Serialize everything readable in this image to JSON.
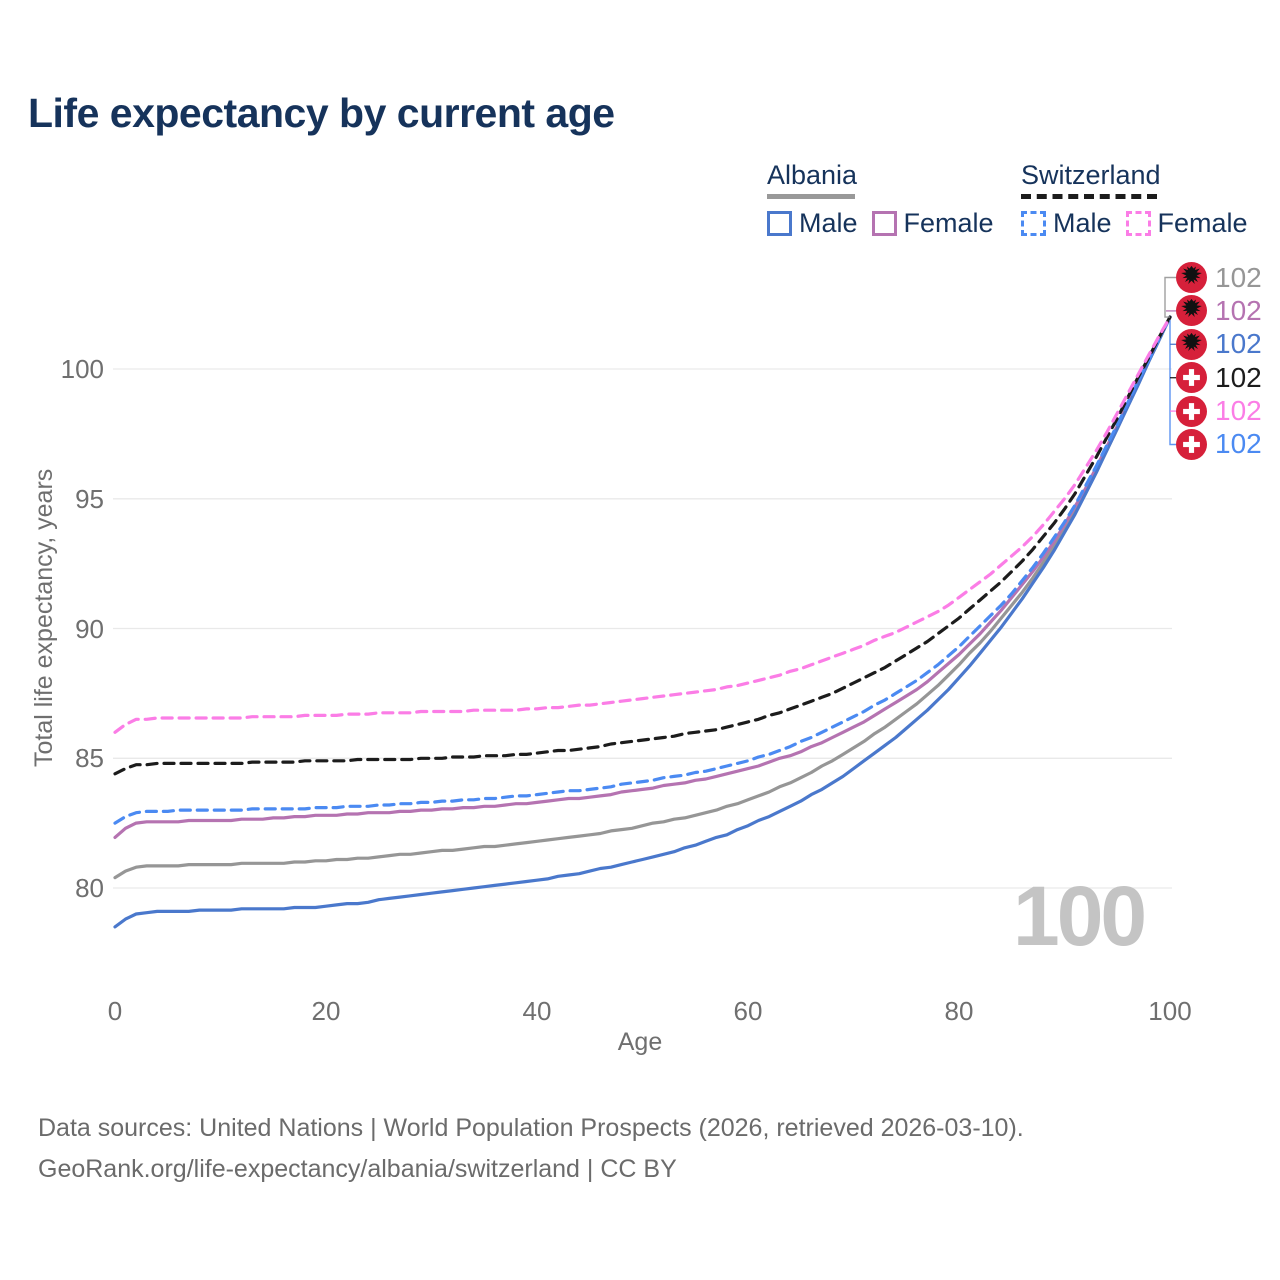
{
  "title": "Life expectancy by current age",
  "watermark": "100",
  "legend": {
    "groups": [
      {
        "country": "Albania",
        "line_style": "solid",
        "underline_color": "#999999",
        "items": [
          {
            "label": "Male",
            "color": "#4a78cc"
          },
          {
            "label": "Female",
            "color": "#b573b1"
          }
        ]
      },
      {
        "country": "Switzerland",
        "line_style": "dashed",
        "underline_color": "#1c1c1c",
        "items": [
          {
            "label": "Male",
            "color": "#4b8af2"
          },
          {
            "label": "Female",
            "color": "#fb7de6"
          }
        ]
      }
    ]
  },
  "chart_data": {
    "type": "line",
    "title": "Life expectancy by current age",
    "xlabel": "Age",
    "ylabel": "Total life expectancy, years",
    "x_ticks": [
      0,
      20,
      40,
      60,
      80,
      100
    ],
    "y_ticks": [
      100,
      95,
      90,
      85,
      80
    ],
    "xlim": [
      0,
      100
    ],
    "ylim": [
      78,
      102.5
    ],
    "grid": "horizontal",
    "legend_position": "top-right",
    "x": [
      0,
      2,
      10,
      20,
      30,
      40,
      50,
      60,
      70,
      80,
      90,
      100
    ],
    "series": [
      {
        "name": "Albania — Both sexes",
        "country": "Albania",
        "sex": "both",
        "color": "#969696",
        "dash": false,
        "values": [
          80.4,
          80.8,
          80.9,
          81.05,
          81.4,
          81.8,
          82.4,
          83.4,
          85.4,
          88.6,
          93.8,
          102
        ]
      },
      {
        "name": "Albania — Female",
        "country": "Albania",
        "sex": "female",
        "color": "#b573b1",
        "dash": false,
        "values": [
          81.95,
          82.5,
          82.6,
          82.8,
          83.0,
          83.3,
          83.8,
          84.6,
          86.2,
          89.0,
          94.0,
          102
        ]
      },
      {
        "name": "Albania — Male",
        "country": "Albania",
        "sex": "male",
        "color": "#4a78cc",
        "dash": false,
        "values": [
          78.5,
          79.0,
          79.15,
          79.3,
          79.8,
          80.3,
          81.1,
          82.4,
          84.6,
          88.1,
          93.7,
          102
        ]
      },
      {
        "name": "Switzerland — Male",
        "country": "Switzerland",
        "sex": "male",
        "color": "#4b8af2",
        "dash": true,
        "values": [
          82.5,
          82.9,
          83.0,
          83.1,
          83.3,
          83.6,
          84.1,
          84.9,
          86.6,
          89.3,
          94.1,
          102
        ]
      },
      {
        "name": "Switzerland — Both sexes",
        "country": "Switzerland",
        "sex": "both",
        "color": "#1c1c1c",
        "dash": true,
        "values": [
          84.4,
          84.75,
          84.8,
          84.9,
          85.0,
          85.2,
          85.7,
          86.4,
          87.9,
          90.4,
          94.6,
          102
        ]
      },
      {
        "name": "Switzerland — Female",
        "country": "Switzerland",
        "sex": "female",
        "color": "#fb7de6",
        "dash": true,
        "values": [
          86.0,
          86.5,
          86.55,
          86.65,
          86.8,
          86.9,
          87.3,
          87.9,
          89.2,
          91.2,
          95.0,
          102
        ]
      }
    ]
  },
  "end_labels": {
    "rows": [
      {
        "flag": "albania",
        "value": "102",
        "color": "#969696"
      },
      {
        "flag": "albania",
        "value": "102",
        "color": "#b573b1"
      },
      {
        "flag": "albania",
        "value": "102",
        "color": "#4a78cc"
      },
      {
        "flag": "switzerland",
        "value": "102",
        "color": "#1c1c1c"
      },
      {
        "flag": "switzerland",
        "value": "102",
        "color": "#fb7de6"
      },
      {
        "flag": "switzerland",
        "value": "102",
        "color": "#4b8af2"
      }
    ]
  },
  "footer": {
    "line1": "Data sources: United Nations | World Population Prospects (2026, retrieved 2026-03-10).",
    "line2": "GeoRank.org/life-expectancy/albania/switzerland | CC BY"
  },
  "colors": {
    "title": "#16335b",
    "axis_text": "#6f6f6f",
    "gridline": "#e9e9e9",
    "watermark": "#c4c4c4",
    "flag_red": "#d6203a"
  }
}
